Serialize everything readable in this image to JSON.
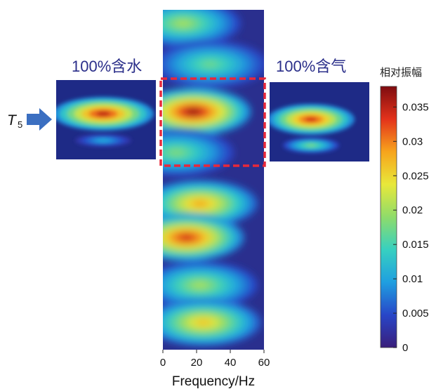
{
  "chart_data": {
    "type": "heatmap",
    "xlabel": "Frequency/Hz",
    "x_ticks": [
      0,
      20,
      40,
      60
    ],
    "xlim": [
      0,
      60
    ],
    "colorbar": {
      "title": "相对振幅",
      "range": [
        0,
        0.038
      ],
      "ticks": [
        "0",
        "0.005",
        "0.01",
        "0.015",
        "0.02",
        "0.025",
        "0.03",
        "0.035"
      ],
      "tick_values": [
        0,
        0.005,
        0.01,
        0.015,
        0.02,
        0.025,
        0.03,
        0.035
      ]
    },
    "insets": [
      {
        "label": "100%含水",
        "side": "left",
        "peak_relative_amplitude": 0.035,
        "secondary_relative_amplitude": 0.011
      },
      {
        "label": "100%含气",
        "side": "right",
        "peak_relative_amplitude": 0.034,
        "secondary_relative_amplitude": 0.018
      }
    ],
    "marker": {
      "label": "T",
      "subscript": "5"
    },
    "main_blobs": [
      {
        "freq": 12,
        "row": 0.04,
        "amp": 0.02
      },
      {
        "freq": 28,
        "row": 0.16,
        "amp": 0.017
      },
      {
        "freq": 18,
        "row": 0.3,
        "amp": 0.037
      },
      {
        "freq": 8,
        "row": 0.42,
        "amp": 0.018
      },
      {
        "freq": 22,
        "row": 0.57,
        "amp": 0.028
      },
      {
        "freq": 14,
        "row": 0.67,
        "amp": 0.034
      },
      {
        "freq": 22,
        "row": 0.81,
        "amp": 0.02
      },
      {
        "freq": 24,
        "row": 0.92,
        "amp": 0.026
      }
    ],
    "colormap": [
      "#3a1e7a",
      "#2846c8",
      "#1f9fe0",
      "#37d0c0",
      "#8fdc6a",
      "#e8e83a",
      "#f7a41c",
      "#e3321b",
      "#7e0c10"
    ]
  }
}
